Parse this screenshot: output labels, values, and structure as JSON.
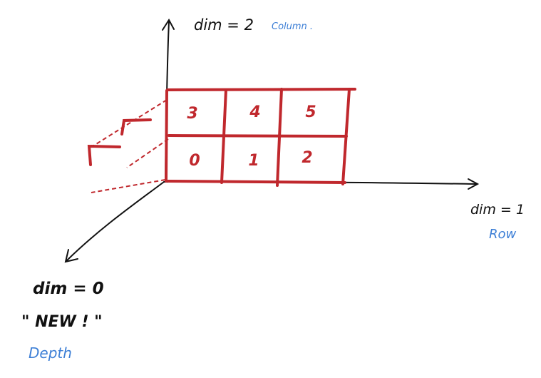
{
  "colors": {
    "ink": "#111111",
    "grid": "#c0282d",
    "annotation": "#3d7fd6"
  },
  "axes": {
    "vertical": {
      "label": "dim = 2",
      "note": "Column ."
    },
    "horizontal": {
      "label": "dim = 1",
      "note": "Row"
    },
    "depth": {
      "label": "dim = 0",
      "tag": "\" NEW ! \"",
      "note": "Depth"
    }
  },
  "grid": {
    "rows": 2,
    "cols": 3,
    "cells": [
      [
        "3",
        "4",
        "5"
      ],
      [
        "0",
        "1",
        "2"
      ]
    ]
  }
}
